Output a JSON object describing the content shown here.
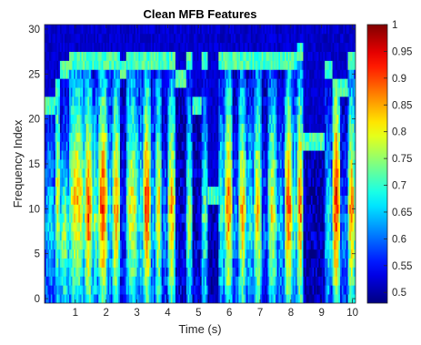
{
  "chart_data": {
    "type": "heatmap",
    "title": "Clean MFB Features",
    "xlabel": "Time (s)",
    "ylabel": "Frequency Index",
    "xlim": [
      0,
      10.1
    ],
    "ylim": [
      -0.5,
      30.5
    ],
    "xticks": [
      1,
      2,
      3,
      4,
      5,
      6,
      7,
      8,
      9,
      10
    ],
    "yticks": [
      0,
      5,
      10,
      15,
      20,
      25,
      30
    ],
    "colormap": "jet",
    "clim": [
      0.48,
      1.0
    ],
    "colorbar": {
      "ticks": [
        0.5,
        0.55,
        0.6,
        0.65,
        0.7,
        0.75,
        0.8,
        0.85,
        0.9,
        0.95,
        1
      ],
      "tick_labels": [
        "0.5",
        "0.55",
        "0.6",
        "0.65",
        "0.7",
        "0.75",
        "0.8",
        "0.85",
        "0.9",
        "0.95",
        "1"
      ],
      "placement": "right"
    },
    "n_rows": 31,
    "background_value": 0.5,
    "segments": [
      {
        "start": 0.0,
        "end": 0.35,
        "peak": 0.67,
        "top": 16,
        "cutoff": 22
      },
      {
        "start": 0.35,
        "end": 0.5,
        "peak": 0.82,
        "top": 23,
        "cutoff": 24
      },
      {
        "start": 0.5,
        "end": 0.8,
        "peak": 0.78,
        "top": 14,
        "cutoff": 26
      },
      {
        "start": 0.8,
        "end": 1.3,
        "peak": 0.85,
        "top": 22,
        "cutoff": 27
      },
      {
        "start": 1.3,
        "end": 1.55,
        "peak": 0.92,
        "top": 20,
        "cutoff": 27
      },
      {
        "start": 1.55,
        "end": 1.75,
        "peak": 0.76,
        "top": 18,
        "cutoff": 27
      },
      {
        "start": 1.75,
        "end": 2.05,
        "peak": 0.93,
        "top": 21,
        "cutoff": 27
      },
      {
        "start": 2.05,
        "end": 2.2,
        "peak": 0.7,
        "top": 19,
        "cutoff": 27
      },
      {
        "start": 2.2,
        "end": 2.45,
        "peak": 0.88,
        "top": 21,
        "cutoff": 27
      },
      {
        "start": 2.45,
        "end": 2.65,
        "peak": 0.58,
        "top": 14,
        "cutoff": 26
      },
      {
        "start": 2.65,
        "end": 3.05,
        "peak": 0.82,
        "top": 21,
        "cutoff": 27
      },
      {
        "start": 3.05,
        "end": 3.2,
        "peak": 0.72,
        "top": 19,
        "cutoff": 27
      },
      {
        "start": 3.2,
        "end": 3.45,
        "peak": 0.93,
        "top": 21,
        "cutoff": 27
      },
      {
        "start": 3.45,
        "end": 3.6,
        "peak": 0.67,
        "top": 18,
        "cutoff": 27
      },
      {
        "start": 3.6,
        "end": 3.8,
        "peak": 0.84,
        "top": 20,
        "cutoff": 27
      },
      {
        "start": 3.8,
        "end": 4.0,
        "peak": 0.62,
        "top": 16,
        "cutoff": 27
      },
      {
        "start": 4.0,
        "end": 4.25,
        "peak": 0.87,
        "top": 20,
        "cutoff": 27
      },
      {
        "start": 4.25,
        "end": 4.6,
        "peak": 0.54,
        "top": 12,
        "cutoff": 25
      },
      {
        "start": 4.6,
        "end": 4.8,
        "peak": 0.77,
        "top": 18,
        "cutoff": 27
      },
      {
        "start": 4.8,
        "end": 5.1,
        "peak": 0.53,
        "top": 10,
        "cutoff": 22
      },
      {
        "start": 5.1,
        "end": 5.3,
        "peak": 0.74,
        "top": 18,
        "cutoff": 27
      },
      {
        "start": 5.3,
        "end": 5.65,
        "peak": 0.5,
        "top": 6,
        "cutoff": 12
      },
      {
        "start": 5.65,
        "end": 5.85,
        "peak": 0.72,
        "top": 19,
        "cutoff": 27
      },
      {
        "start": 5.85,
        "end": 6.1,
        "peak": 0.9,
        "top": 21,
        "cutoff": 27
      },
      {
        "start": 6.1,
        "end": 6.3,
        "peak": 0.64,
        "top": 16,
        "cutoff": 27
      },
      {
        "start": 6.3,
        "end": 6.55,
        "peak": 0.86,
        "top": 20,
        "cutoff": 27
      },
      {
        "start": 6.55,
        "end": 6.8,
        "peak": 0.7,
        "top": 18,
        "cutoff": 27
      },
      {
        "start": 6.8,
        "end": 7.05,
        "peak": 0.85,
        "top": 20,
        "cutoff": 27
      },
      {
        "start": 7.05,
        "end": 7.25,
        "peak": 0.6,
        "top": 15,
        "cutoff": 27
      },
      {
        "start": 7.25,
        "end": 7.55,
        "peak": 0.82,
        "top": 20,
        "cutoff": 27
      },
      {
        "start": 7.55,
        "end": 7.8,
        "peak": 0.66,
        "top": 17,
        "cutoff": 27
      },
      {
        "start": 7.8,
        "end": 8.05,
        "peak": 0.92,
        "top": 21,
        "cutoff": 27
      },
      {
        "start": 8.05,
        "end": 8.2,
        "peak": 0.73,
        "top": 19,
        "cutoff": 27
      },
      {
        "start": 8.2,
        "end": 8.4,
        "peak": 0.9,
        "top": 21,
        "cutoff": 28
      },
      {
        "start": 8.4,
        "end": 9.1,
        "peak": 0.51,
        "top": 6,
        "cutoff": 18
      },
      {
        "start": 9.1,
        "end": 9.35,
        "peak": 0.7,
        "top": 17,
        "cutoff": 26
      },
      {
        "start": 9.35,
        "end": 9.6,
        "peak": 0.95,
        "top": 22,
        "cutoff": 24
      },
      {
        "start": 9.6,
        "end": 9.85,
        "peak": 0.62,
        "top": 15,
        "cutoff": 24
      },
      {
        "start": 9.85,
        "end": 10.1,
        "peak": 0.88,
        "top": 20,
        "cutoff": 27
      }
    ]
  }
}
